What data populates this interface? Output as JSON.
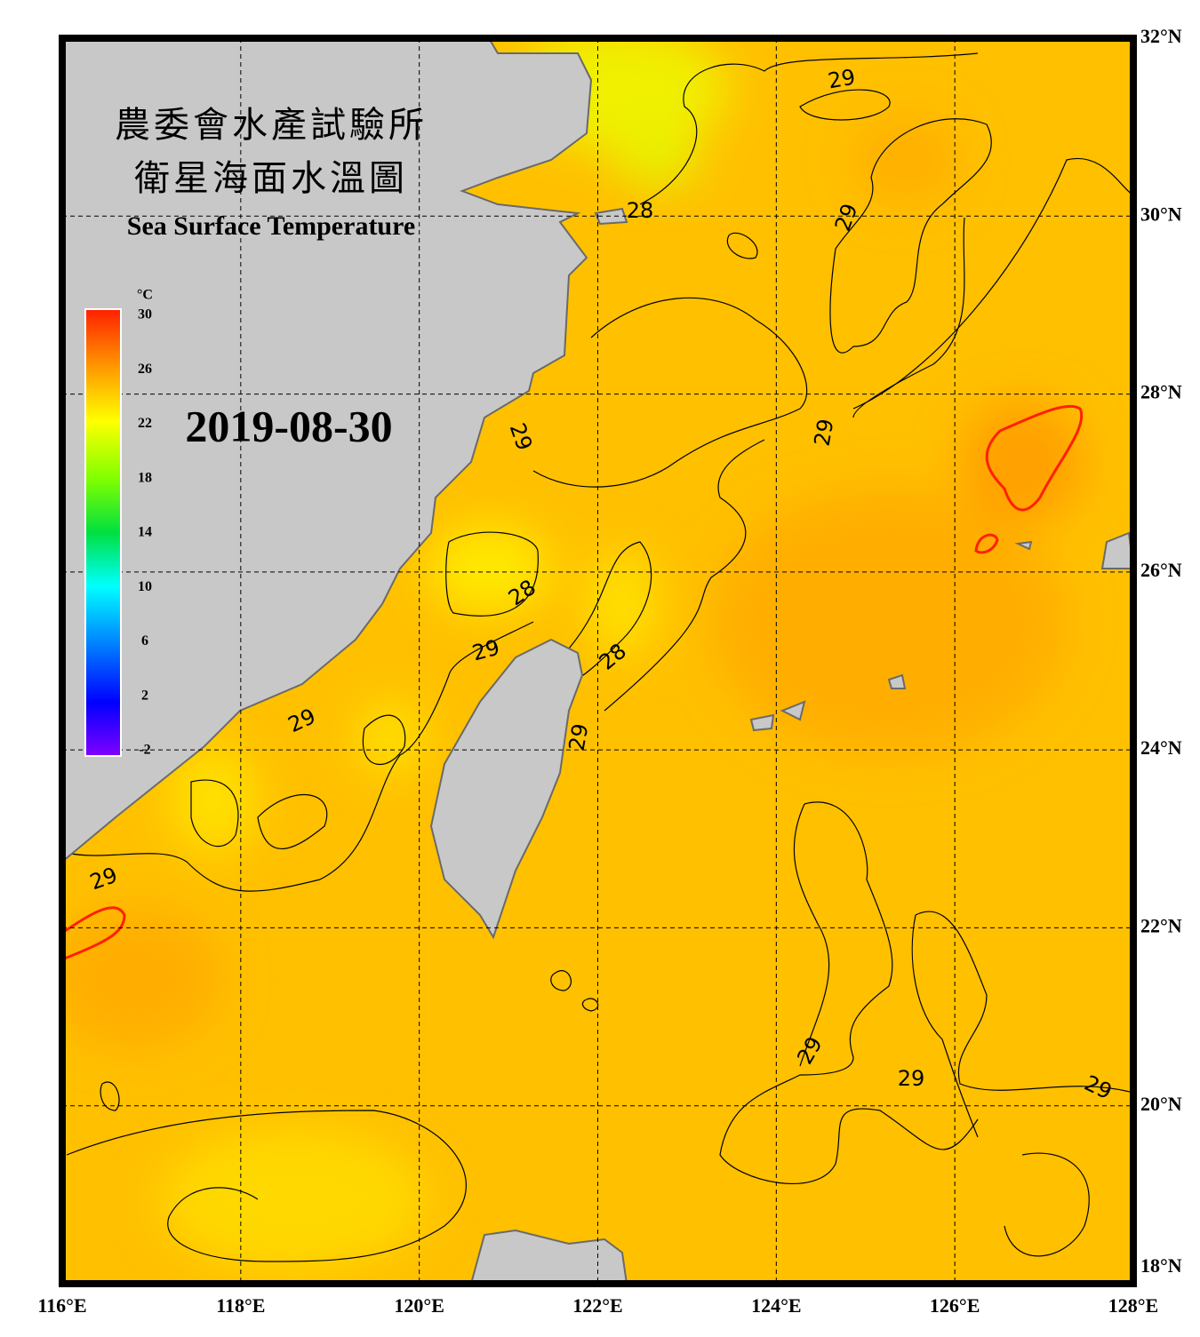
{
  "header": {
    "title_zh_1": "農委會水產試驗所",
    "title_zh_2": "衛星海面水溫圖",
    "title_en": "Sea Surface Temperature",
    "date": "2019-08-30"
  },
  "colorbar": {
    "unit": "°C",
    "labels": [
      "30",
      "26",
      "22",
      "18",
      "14",
      "10",
      "6",
      "2",
      "-2"
    ]
  },
  "axes": {
    "lon_labels": [
      "116°E",
      "118°E",
      "120°E",
      "122°E",
      "124°E",
      "126°E",
      "128°E"
    ],
    "lat_labels": [
      "32°N",
      "30°N",
      "28°N",
      "26°N",
      "24°N",
      "22°N",
      "20°N",
      "18°N"
    ]
  },
  "contour_labels": [
    "29",
    "28",
    "29",
    "29",
    "29",
    "28",
    "29",
    "28",
    "29",
    "29",
    "29",
    "29",
    "29",
    "29"
  ]
}
